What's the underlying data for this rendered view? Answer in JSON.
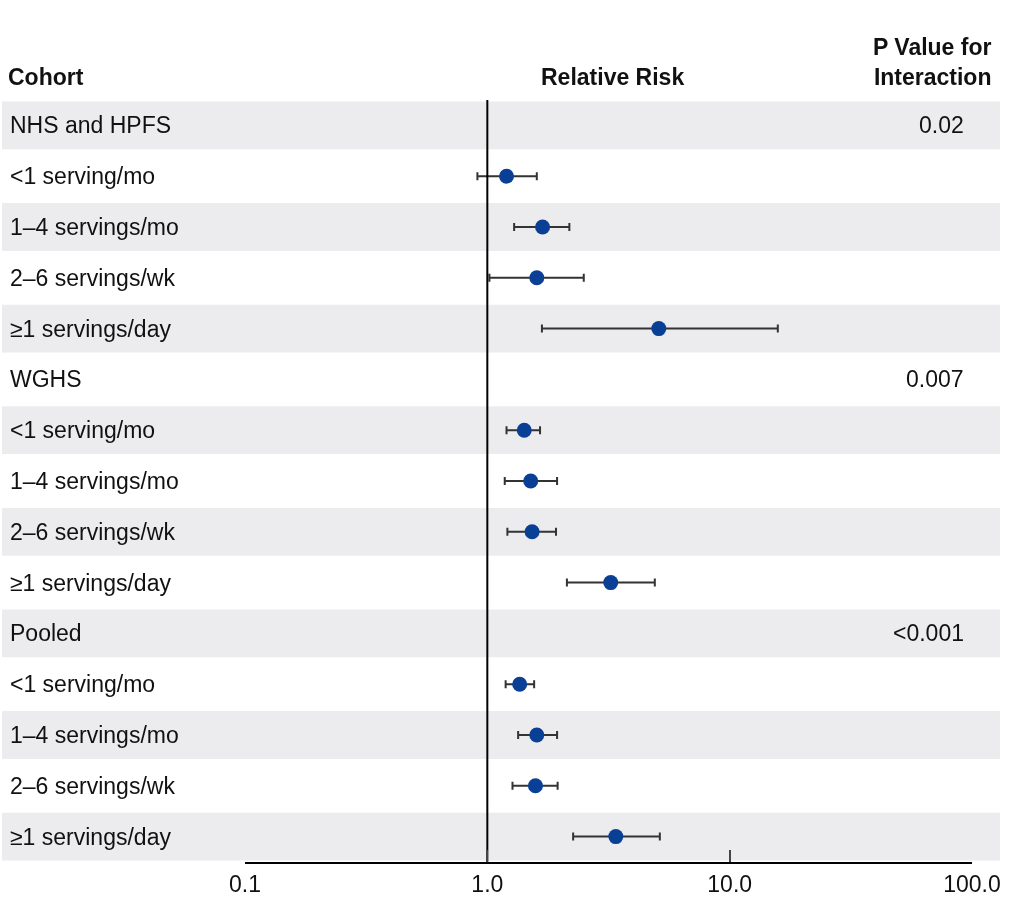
{
  "chart_data": {
    "type": "scatter",
    "orientation": "horizontal",
    "xlabel": "Relative Risk",
    "ylabel": "Cohort",
    "categories": [
      "NHS and HPFS",
      "<1 serving/mo",
      "1–4 servings/mo",
      "2–6 servings/wk",
      "≥1 servings/day",
      "WGHS",
      "<1 serving/mo",
      "1–4 servings/mo",
      "2–6 servings/wk",
      "≥1 servings/day",
      "Pooled",
      "<1 serving/mo",
      "1–4 servings/mo",
      "2–6 servings/wk",
      "≥1 servings/day"
    ],
    "series": [
      {
        "color": "#0a3f96",
        "values": [
          null,
          1.2,
          1.69,
          1.6,
          5.1,
          null,
          1.42,
          1.51,
          1.53,
          3.23,
          null,
          1.36,
          1.6,
          1.58,
          3.39
        ],
        "errors": [
          null,
          [
            0.91,
            1.6
          ],
          [
            1.29,
            2.18
          ],
          [
            1.02,
            2.5
          ],
          [
            1.68,
            15.8
          ],
          null,
          [
            1.2,
            1.65
          ],
          [
            1.18,
            1.94
          ],
          [
            1.21,
            1.92
          ],
          [
            2.13,
            4.91
          ],
          null,
          [
            1.19,
            1.56
          ],
          [
            1.34,
            1.94
          ],
          [
            1.27,
            1.95
          ],
          [
            2.26,
            5.15
          ]
        ]
      }
    ],
    "log": "x",
    "xlim": [
      0.1,
      100
    ],
    "xticks": [
      {
        "value": 0.1,
        "label": "0.1"
      },
      {
        "value": 1,
        "label": "1.0"
      },
      {
        "value": 10,
        "label": "10.0"
      },
      {
        "value": 100,
        "label": "100.0"
      }
    ],
    "ref_lines": [
      {
        "axis": "x",
        "value": 1,
        "color": "#000000"
      }
    ],
    "marker": "circle",
    "grid": false,
    "annotations": [
      "P Value for Interaction",
      "0.02",
      "0.007",
      "<0.001"
    ]
  }
}
